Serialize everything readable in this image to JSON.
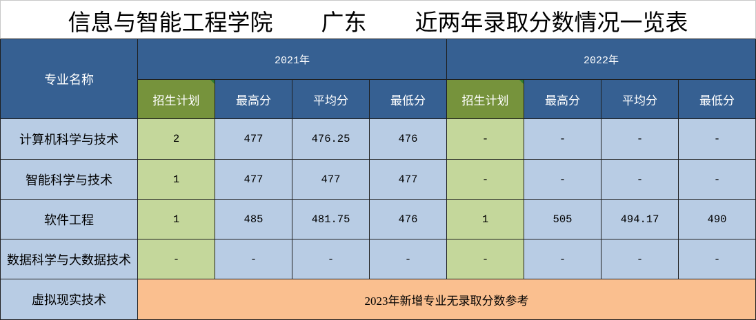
{
  "title": {
    "college": "信息与智能工程学院",
    "province": "广东",
    "subject": "近两年录取分数情况一览表"
  },
  "header": {
    "major_label": "专业名称",
    "years": [
      {
        "label": "2021年",
        "columns": [
          "招生计划",
          "最高分",
          "平均分",
          "最低分"
        ]
      },
      {
        "label": "2022年",
        "columns": [
          "招生计划",
          "最高分",
          "平均分",
          "最低分"
        ]
      }
    ]
  },
  "rows": [
    {
      "major": "计算机科学与技术",
      "y2021": [
        "2",
        "477",
        "476.25",
        "476"
      ],
      "y2022": [
        "-",
        "-",
        "-",
        "-"
      ]
    },
    {
      "major": "智能科学与技术",
      "y2021": [
        "1",
        "477",
        "477",
        "477"
      ],
      "y2022": [
        "-",
        "-",
        "-",
        "-"
      ]
    },
    {
      "major": "软件工程",
      "y2021": [
        "1",
        "485",
        "481.75",
        "476"
      ],
      "y2022": [
        "1",
        "505",
        "494.17",
        "490"
      ]
    },
    {
      "major": "数据科学与大数据技术",
      "y2021": [
        "-",
        "-",
        "-",
        "-"
      ],
      "y2022": [
        "-",
        "-",
        "-",
        "-"
      ]
    }
  ],
  "new_major": {
    "major": "虚拟现实技术",
    "note": "2023年新增专业无录取分数参考"
  },
  "colors": {
    "header_blue": "#366092",
    "plan_header_green": "#76933c",
    "body_blue": "#b8cce4",
    "plan_body_green": "#c4d79b",
    "note_peach": "#fabf8f"
  }
}
